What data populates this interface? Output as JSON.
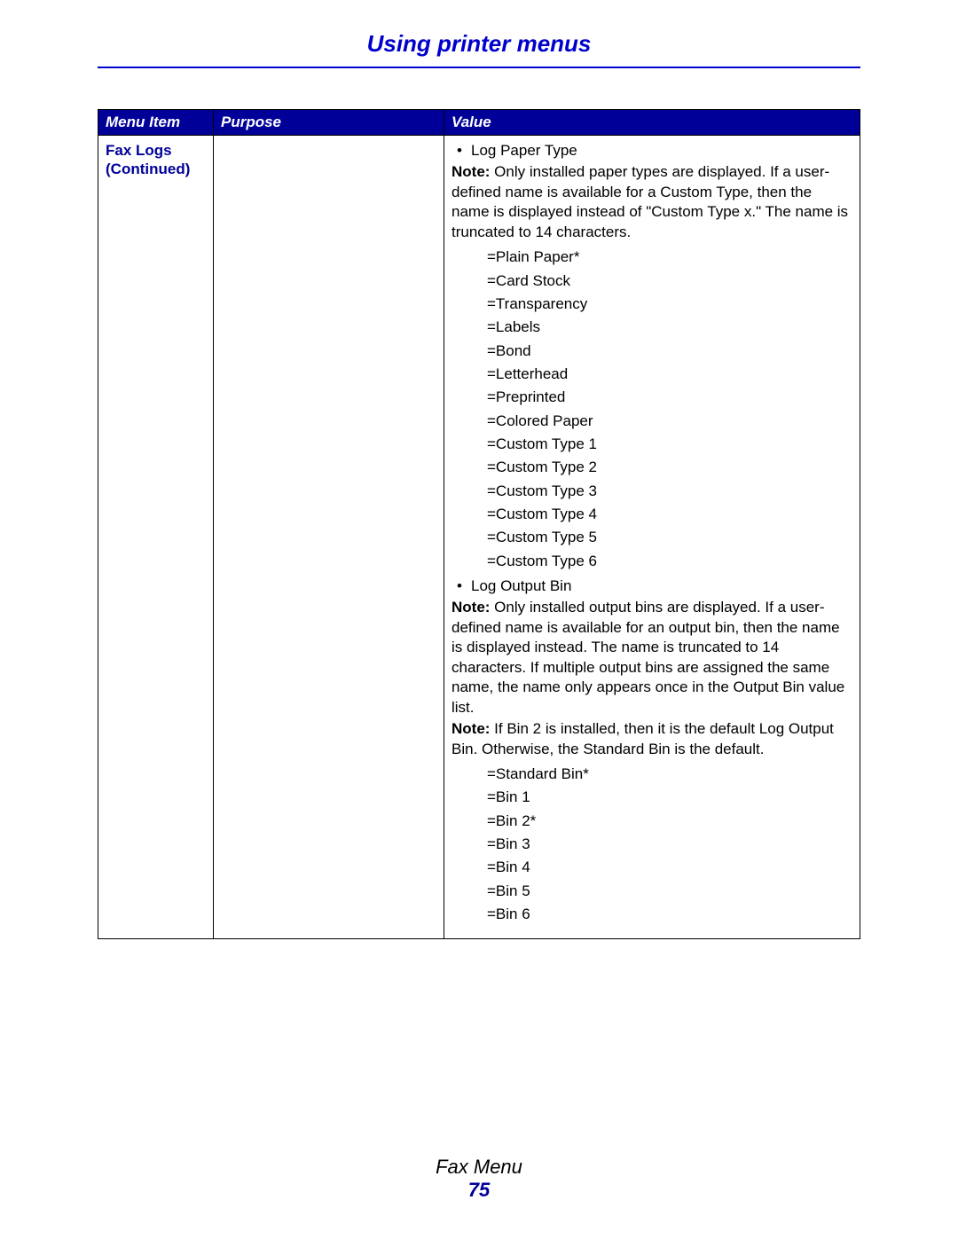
{
  "header": {
    "title": "Using printer menus",
    "title_color": "#0000cc",
    "rule_color": "#0000cc"
  },
  "table": {
    "header_bg": "#000099",
    "header_fg": "#ffffff",
    "columns": {
      "menu_item": "Menu Item",
      "purpose": "Purpose",
      "value": "Value"
    },
    "row": {
      "menu_item_line1": "Fax Logs",
      "menu_item_line2": "(Continued)",
      "purpose": "",
      "value": {
        "section1": {
          "bullet": "Log Paper Type",
          "note_lead": "Note:",
          "note_body": " Only installed paper types are displayed. If a user-defined name is available for a Custom Type, then the name is displayed instead of \"Custom Type x.\" The name is truncated to 14 characters.",
          "options": [
            "=Plain Paper*",
            "=Card Stock",
            "=Transparency",
            "=Labels",
            "=Bond",
            "=Letterhead",
            "=Preprinted",
            "=Colored Paper",
            "=Custom Type 1",
            "=Custom Type 2",
            "=Custom Type 3",
            "=Custom Type 4",
            "=Custom Type 5",
            "=Custom Type 6"
          ]
        },
        "section2": {
          "bullet": "Log Output Bin",
          "note1_lead": "Note:",
          "note1_body": " Only installed output bins are displayed. If a user-defined name is available for an output bin, then the name is displayed instead. The name is truncated to 14 characters. If multiple output bins are assigned the same name, the name only appears once in the Output Bin value list.",
          "note2_lead": "Note:",
          "note2_body": " If Bin 2 is installed, then it is the default Log Output Bin. Otherwise, the Standard Bin is the default.",
          "options": [
            "=Standard Bin*",
            "=Bin 1",
            "=Bin 2*",
            "=Bin 3",
            "=Bin 4",
            "=Bin 5",
            "=Bin 6"
          ]
        }
      }
    }
  },
  "footer": {
    "section_label": "Fax Menu",
    "page_number": "75",
    "page_number_color": "#000099"
  }
}
